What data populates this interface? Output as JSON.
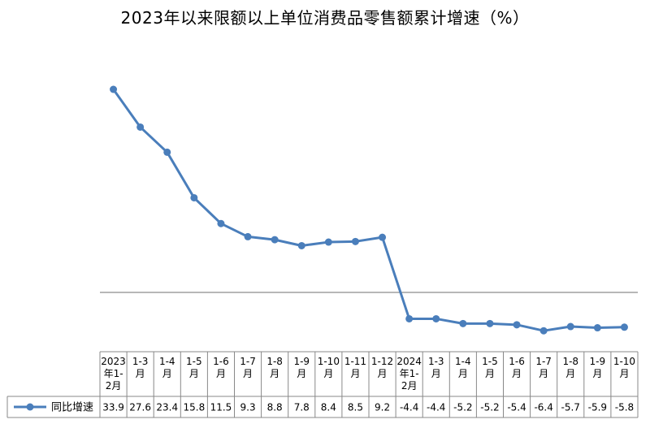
{
  "chart_data": {
    "type": "line",
    "title": "2023年以来限额以上单位消费品零售额累计增速（%）",
    "categories": [
      [
        "2023",
        "年1-",
        "2月"
      ],
      [
        "1-3",
        "月"
      ],
      [
        "1-4",
        "月"
      ],
      [
        "1-5",
        "月"
      ],
      [
        "1-6",
        "月"
      ],
      [
        "1-7",
        "月"
      ],
      [
        "1-8",
        "月"
      ],
      [
        "1-9",
        "月"
      ],
      [
        "1-10",
        "月"
      ],
      [
        "1-11",
        "月"
      ],
      [
        "1-12",
        "月"
      ],
      [
        "2024",
        "年1-",
        "2月"
      ],
      [
        "1-3",
        "月"
      ],
      [
        "1-4",
        "月"
      ],
      [
        "1-5",
        "月"
      ],
      [
        "1-6",
        "月"
      ],
      [
        "1-7",
        "月"
      ],
      [
        "1-8",
        "月"
      ],
      [
        "1-9",
        "月"
      ],
      [
        "1-10",
        "月"
      ]
    ],
    "series": [
      {
        "name": "同比增速",
        "color": "#4a7ebb",
        "values": [
          33.9,
          27.6,
          23.4,
          15.8,
          11.5,
          9.3,
          8.8,
          7.8,
          8.4,
          8.5,
          9.2,
          -4.4,
          -4.4,
          -5.2,
          -5.2,
          -5.4,
          -6.4,
          -5.7,
          -5.9,
          -5.8
        ],
        "labels": [
          "33.9",
          "27.6",
          "23.4",
          "15.8",
          "11.5",
          "9.3",
          "8.8",
          "7.8",
          "8.4",
          "8.5",
          "9.2",
          "-4.4",
          "-4.4",
          "-5.2",
          "-5.2",
          "-5.4",
          "-6.4",
          "-5.7",
          "-5.9",
          "-5.8"
        ]
      }
    ],
    "ylim": [
      -10,
      40
    ],
    "grid": false,
    "legend": "data-table-left",
    "zero_line_color": "#8c8c8c",
    "table_border_color": "#888888"
  }
}
